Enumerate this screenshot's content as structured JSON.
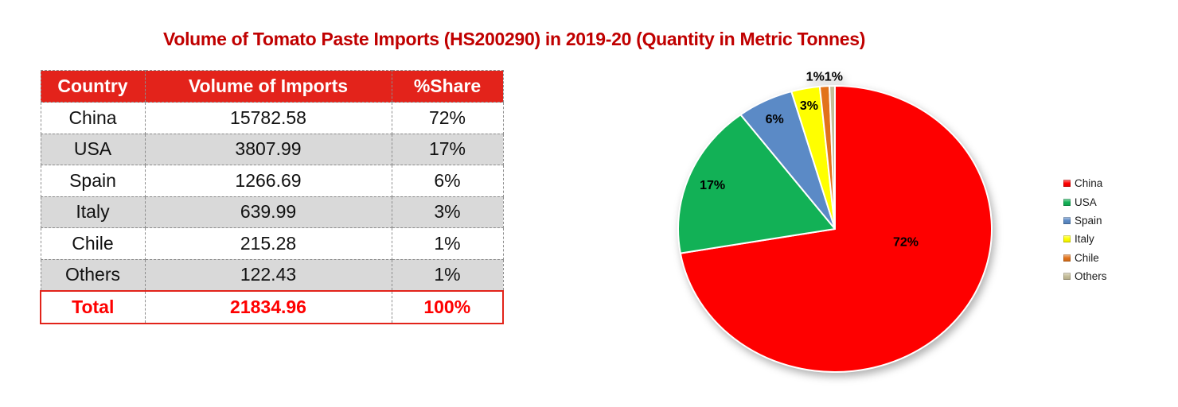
{
  "title": {
    "text": "Volume of Tomato Paste Imports (HS200290) in 2019-20 (Quantity in Metric Tonnes)"
  },
  "colors": {
    "title": "#C00000",
    "header_bg": "#E3231B",
    "header_text": "#FFFFFF",
    "row_alt_bg": "#D9D9D9",
    "cell_border": "#8C8C8C",
    "total_text": "#FE0000",
    "total_border": "#E2231A"
  },
  "table": {
    "headers": [
      "Country",
      "Volume of Imports",
      "%Share"
    ],
    "rows": [
      {
        "country": "China",
        "volume": "15782.58",
        "share": "72%"
      },
      {
        "country": "USA",
        "volume": "3807.99",
        "share": "17%"
      },
      {
        "country": "Spain",
        "volume": "1266.69",
        "share": "6%"
      },
      {
        "country": "Italy",
        "volume": "639.99",
        "share": "3%"
      },
      {
        "country": "Chile",
        "volume": "215.28",
        "share": "1%"
      },
      {
        "country": "Others",
        "volume": "122.43",
        "share": "1%"
      }
    ],
    "total": {
      "label": "Total",
      "volume": "21834.96",
      "share": "100%"
    }
  },
  "chart_data": {
    "type": "pie",
    "categories": [
      "China",
      "USA",
      "Spain",
      "Italy",
      "Chile",
      "Others"
    ],
    "values": [
      15782.58,
      3807.99,
      1266.69,
      639.99,
      215.28,
      122.43
    ],
    "percent_labels": [
      "72%",
      "17%",
      "6%",
      "3%",
      "1%",
      "1%"
    ],
    "colors": [
      "#FE0000",
      "#12B156",
      "#5B8AC6",
      "#FFFF00",
      "#E2731B",
      "#C5BD98"
    ],
    "title": "",
    "legend_position": "right",
    "start_angle_deg": 0,
    "direction": "clockwise",
    "label_layout": [
      {
        "r_frac": 0.46,
        "angle_deg": 101
      },
      {
        "r_frac": 0.84
      },
      {
        "r_frac": 0.86
      },
      {
        "r_frac": 0.88
      },
      {
        "r_frac": 1.07,
        "angle_deg": 356.4,
        "anchor": "end"
      },
      {
        "r_frac": 1.07,
        "angle_deg": 356.4,
        "anchor": "start"
      }
    ]
  }
}
